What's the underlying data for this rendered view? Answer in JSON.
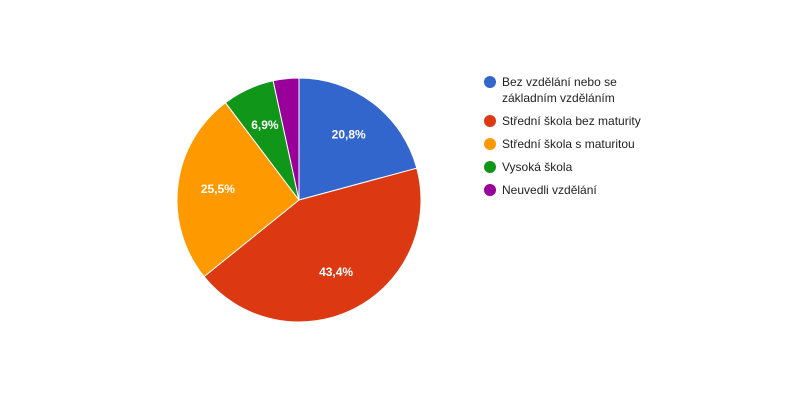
{
  "chart_data": {
    "type": "pie",
    "categories": [
      "Bez vzdělání nebo se základním vzděláním",
      "Střední škola bez maturity",
      "Střední škola s maturitou",
      "Vysoká škola",
      "Neuvedli vzdělání"
    ],
    "values": [
      20.8,
      43.4,
      25.5,
      6.9,
      3.4
    ],
    "value_labels": [
      "20,8%",
      "43,4%",
      "25,5%",
      "6,9%",
      null
    ],
    "colors": [
      "#3366cc",
      "#dc3912",
      "#ff9900",
      "#109618",
      "#990099"
    ],
    "legend": "right"
  }
}
